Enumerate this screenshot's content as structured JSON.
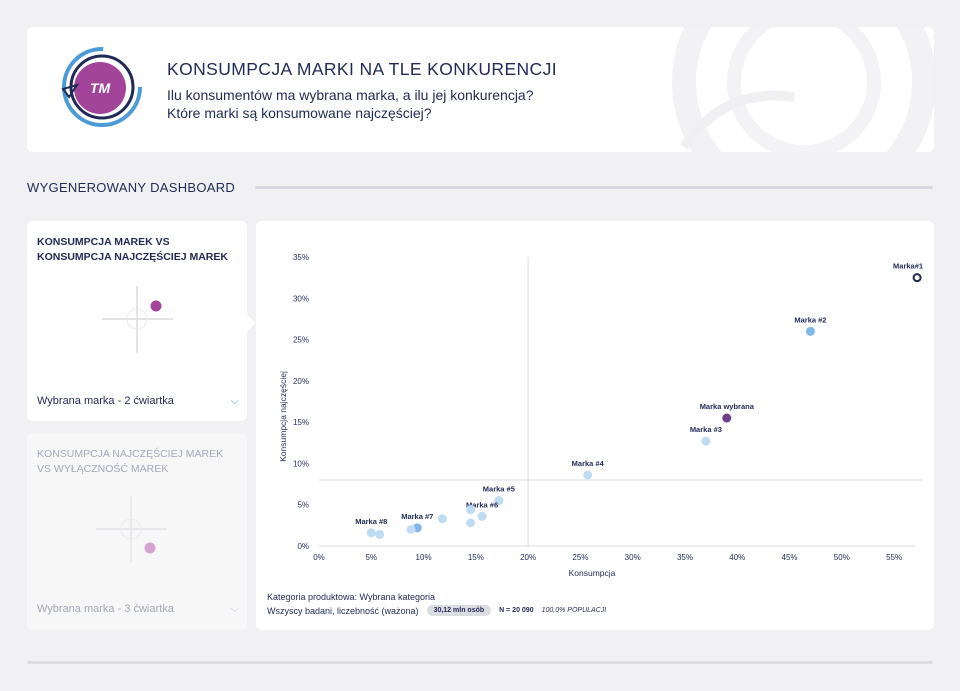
{
  "header": {
    "logo_text": "TM",
    "title": "KONSUMPCJA MARKI NA TLE KONKURENCJI",
    "subtitle_line1": "Ilu konsumentów ma wybrana marka, a ilu jej konkurencja?",
    "subtitle_line2": "Które marki są konsumowane najczęściej?"
  },
  "section": {
    "title": "WYGENEROWANY DASHBOARD"
  },
  "side_cards": [
    {
      "title": "KONSUMPCJA MAREK VS KONSUMPCJA NAJCZĘŚCIEJ MAREK",
      "selection": "Wybrana marka - 2 ćwiartka",
      "active": true,
      "dot_color": "#a2459a"
    },
    {
      "title": "KONSUMPCJA NAJCZĘŚCIEJ MAREK VS WYŁĄCZNOŚĆ MAREK",
      "selection": "Wybrana marka - 3 ćwiartka",
      "active": false,
      "dot_color": "#d6a3d2"
    }
  ],
  "footer": {
    "category": "Kategoria produktowa: Wybrana kategoria",
    "sample": "Wszyscy badani, liczebność (ważona)",
    "population_pill": "30,12 mln osób",
    "n_value": "N = 20 090",
    "population_pct": "100,0% POPULACJI"
  },
  "colors": {
    "navy": "#1f2a56",
    "accent_blue": "#4d9ad8",
    "purple": "#a2459a",
    "selected_purple": "#6d3f86",
    "point_blue": "#7fb8e6",
    "point_light": "#bfdcf3"
  },
  "chart_data": {
    "type": "scatter",
    "xlabel": "Konsumpcja",
    "ylabel": "Konsumpcja najczęściej",
    "xlim": [
      0,
      57
    ],
    "ylim": [
      0,
      35
    ],
    "xticks": [
      "0%",
      "5%",
      "10%",
      "15%",
      "20%",
      "25%",
      "30%",
      "35%",
      "40%",
      "45%",
      "50%",
      "55%"
    ],
    "yticks": [
      "0%",
      "5%",
      "10%",
      "15%",
      "20%",
      "25%",
      "30%",
      "35%"
    ],
    "quadrant_lines": {
      "x": 20,
      "y": 8
    },
    "points": [
      {
        "label": "Marka#1",
        "x": 57.2,
        "y": 32.5,
        "style": "ring"
      },
      {
        "label": "Marka #2",
        "x": 47.0,
        "y": 26.0,
        "style": "blue"
      },
      {
        "label": "Marka wybrana",
        "x": 39.0,
        "y": 15.5,
        "style": "selected"
      },
      {
        "label": "Marka #3",
        "x": 37.0,
        "y": 12.7,
        "style": "light"
      },
      {
        "label": "Marka #4",
        "x": 25.7,
        "y": 8.6,
        "style": "light"
      },
      {
        "label": "Marka #5",
        "x": 17.2,
        "y": 5.5,
        "style": "light"
      },
      {
        "label": "Marka #6",
        "x": 15.6,
        "y": 3.6,
        "style": "light"
      },
      {
        "label": "",
        "x": 14.5,
        "y": 4.4,
        "style": "light"
      },
      {
        "label": "",
        "x": 14.5,
        "y": 2.8,
        "style": "light"
      },
      {
        "label": "",
        "x": 11.8,
        "y": 3.3,
        "style": "light"
      },
      {
        "label": "Marka #7",
        "x": 9.4,
        "y": 2.2,
        "style": "blue"
      },
      {
        "label": "",
        "x": 8.8,
        "y": 2.0,
        "style": "light"
      },
      {
        "label": "Marka #8",
        "x": 5.0,
        "y": 1.6,
        "style": "light"
      },
      {
        "label": "",
        "x": 5.8,
        "y": 1.4,
        "style": "light"
      }
    ]
  }
}
